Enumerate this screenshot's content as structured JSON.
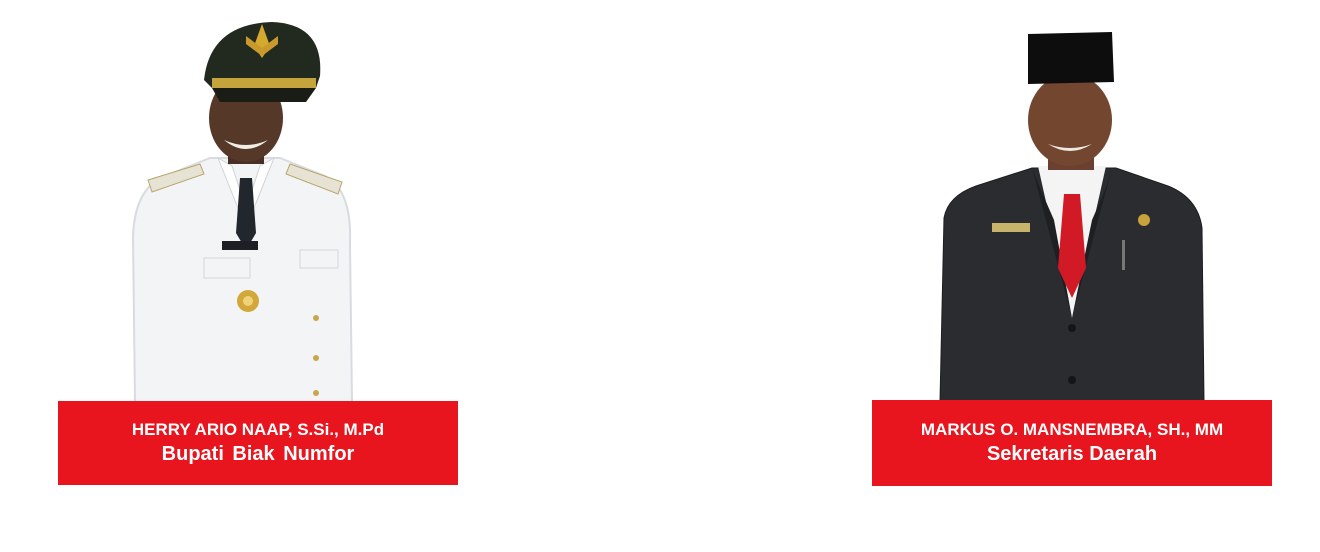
{
  "officials": [
    {
      "name": "HERRY ARIO NAAP, S.Si., M.Pd",
      "title": "Bupati  Biak  Numfor"
    },
    {
      "name": "MARKUS O. MANSNEMBRA, SH., MM",
      "title": "Sekretaris Daerah"
    }
  ],
  "colors": {
    "caption_bg": "#e8141e",
    "caption_text": "#ffffff",
    "page_bg": "#ffffff"
  }
}
